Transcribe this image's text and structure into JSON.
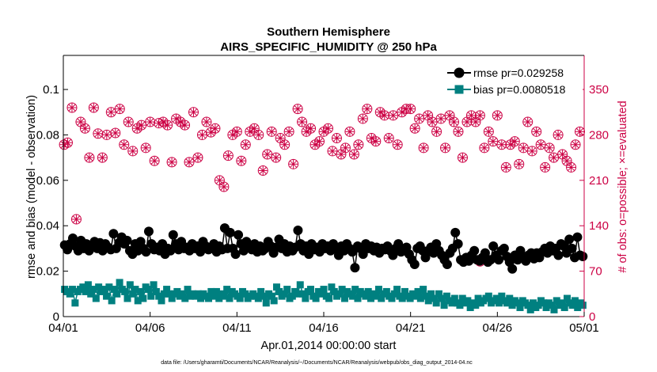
{
  "chart_data": {
    "type": "line",
    "title": [
      "Southern Hemisphere",
      "AIRS_SPECIFIC_HUMIDITY @ 250 hPa"
    ],
    "xlabel": "Apr.01,2014 00:00:00 start",
    "ylabel_left": "rmse and bias (model - observation)",
    "ylabel_right": "# of obs: o=possible; ×=evaluated",
    "footnote": "data file: /Users/gharamti/Documents/NCAR/Reanalysis/~/Documents/NCAR/Reanalysis/webpub/obs_diag_output_2014-04.nc",
    "x_ticks": [
      "04/01",
      "04/06",
      "04/11",
      "04/16",
      "04/21",
      "04/26",
      "05/01"
    ],
    "x_range_days": [
      0,
      30
    ],
    "ylim_left": [
      0,
      0.115
    ],
    "left_ticks": [
      "0",
      "0.02",
      "0.04",
      "0.06",
      "0.08",
      "0.1"
    ],
    "ylim_right": [
      0,
      402.5
    ],
    "right_ticks": [
      "0",
      "70",
      "140",
      "210",
      "280",
      "350"
    ],
    "legend": {
      "position": "top-right",
      "entries": [
        "rmse pr=0.029258",
        "bias pr=0.0080518"
      ]
    },
    "colors": {
      "rmse": "#000000",
      "bias": "#008080",
      "obs": "#cc0044"
    },
    "series": [
      {
        "name": "rmse pr=0.029258",
        "axis": "left",
        "values": [
          0.0315,
          0.0295,
          0.032,
          0.0345,
          0.031,
          0.029,
          0.0335,
          0.03,
          0.032,
          0.029,
          0.0315,
          0.033,
          0.03,
          0.0325,
          0.029,
          0.032,
          0.0305,
          0.0295,
          0.0365,
          0.03,
          0.0325,
          0.035,
          0.032,
          0.0335,
          0.029,
          0.0275,
          0.032,
          0.029,
          0.033,
          0.03,
          0.0285,
          0.0375,
          0.032,
          0.0295,
          0.0305,
          0.029,
          0.032,
          0.0275,
          0.03,
          0.029,
          0.036,
          0.032,
          0.0295,
          0.033,
          0.03,
          0.0305,
          0.029,
          0.032,
          0.03,
          0.031,
          0.0285,
          0.033,
          0.031,
          0.0295,
          0.03,
          0.032,
          0.0285,
          0.031,
          0.0295,
          0.039,
          0.03,
          0.037,
          0.03,
          0.0275,
          0.036,
          0.032,
          0.029,
          0.033,
          0.031,
          0.0295,
          0.032,
          0.0285,
          0.031,
          0.029,
          0.03,
          0.033,
          0.031,
          0.028,
          0.0305,
          0.034,
          0.03,
          0.032,
          0.0285,
          0.031,
          0.029,
          0.0305,
          0.038,
          0.032,
          0.029,
          0.031,
          0.0275,
          0.032,
          0.0295,
          0.0305,
          0.0285,
          0.032,
          0.03,
          0.031,
          0.029,
          0.032,
          0.03,
          0.027,
          0.031,
          0.029,
          0.032,
          0.03,
          0.0285,
          0.0215,
          0.031,
          0.03,
          0.0275,
          0.032,
          0.03,
          0.031,
          0.029,
          0.0305,
          0.028,
          0.03,
          0.0295,
          0.031,
          0.029,
          0.027,
          0.03,
          0.032,
          0.0285,
          0.029,
          0.0305,
          0.0275,
          0.025,
          0.023,
          0.03,
          0.031,
          0.029,
          0.026,
          0.029,
          0.0305,
          0.028,
          0.032,
          0.029,
          0.027,
          0.025,
          0.023,
          0.028,
          0.03,
          0.037,
          0.032,
          0.025,
          0.024,
          0.026,
          0.0245,
          0.027,
          0.029,
          0.025,
          0.0245,
          0.026,
          0.028,
          0.024,
          0.025,
          0.031,
          0.027,
          0.025,
          0.029,
          0.03,
          0.0265,
          0.024,
          0.021,
          0.027,
          0.025,
          0.029,
          0.026,
          0.0245,
          0.027,
          0.028,
          0.0255,
          0.028,
          0.026,
          0.0285,
          0.03,
          0.028,
          0.031,
          0.029,
          0.03,
          0.027,
          0.032,
          0.031,
          0.028,
          0.034,
          0.03,
          0.026,
          0.035,
          0.027,
          0.0265
        ]
      },
      {
        "name": "bias pr=0.0080518",
        "axis": "left",
        "values": [
          0.012,
          0.011,
          0.01,
          0.012,
          0.006,
          0.011,
          0.012,
          0.013,
          0.011,
          0.014,
          0.01,
          0.012,
          0.008,
          0.013,
          0.011,
          0.012,
          0.009,
          0.013,
          0.007,
          0.012,
          0.01,
          0.015,
          0.012,
          0.011,
          0.008,
          0.014,
          0.01,
          0.012,
          0.007,
          0.011,
          0.008,
          0.013,
          0.012,
          0.009,
          0.014,
          0.011,
          0.009,
          0.007,
          0.01,
          0.012,
          0.01,
          0.008,
          0.01,
          0.011,
          0.009,
          0.01,
          0.008,
          0.012,
          0.009,
          0.01,
          0.009,
          0.01,
          0.008,
          0.01,
          0.009,
          0.008,
          0.011,
          0.009,
          0.011,
          0.008,
          0.01,
          0.009,
          0.012,
          0.008,
          0.011,
          0.01,
          0.009,
          0.008,
          0.011,
          0.01,
          0.008,
          0.009,
          0.01,
          0.009,
          0.008,
          0.011,
          0.009,
          0.006,
          0.01,
          0.009,
          0.007,
          0.013,
          0.011,
          0.009,
          0.01,
          0.012,
          0.008,
          0.009,
          0.011,
          0.01,
          0.014,
          0.01,
          0.008,
          0.011,
          0.012,
          0.009,
          0.008,
          0.011,
          0.01,
          0.012,
          0.009,
          0.008,
          0.013,
          0.011,
          0.009,
          0.01,
          0.012,
          0.008,
          0.011,
          0.01,
          0.009,
          0.012,
          0.008,
          0.011,
          0.01,
          0.009,
          0.011,
          0.008,
          0.01,
          0.009,
          0.012,
          0.008,
          0.01,
          0.011,
          0.009,
          0.008,
          0.01,
          0.012,
          0.009,
          0.008,
          0.011,
          0.009,
          0.008,
          0.01,
          0.009,
          0.011,
          0.008,
          0.012,
          0.009,
          0.007,
          0.01,
          0.008,
          0.006,
          0.01,
          0.008,
          0.005,
          0.009,
          0.007,
          0.006,
          0.008,
          0.006,
          0.005,
          0.008,
          0.006,
          0.007,
          0.004,
          0.006,
          0.005,
          0.008,
          0.006,
          0.007,
          0.008,
          0.009,
          0.006,
          0.007,
          0.008,
          0.006,
          0.009,
          0.007,
          0.006,
          0.008,
          0.005,
          0.007,
          0.006,
          0.004,
          0.007,
          0.006,
          0.005,
          0.003,
          0.006,
          0.004,
          0.005,
          0.007,
          0.006,
          0.004,
          0.006,
          0.005,
          0.003,
          0.007,
          0.005,
          0.006,
          0.004,
          0.008,
          0.006,
          0.005,
          0.007,
          0.004,
          0.006,
          0.005
        ]
      },
      {
        "name": "",
        "axis": "right",
        "marker": "circle",
        "x_days": [
          0.05,
          0.25,
          0.5,
          0.75,
          1.0,
          1.25,
          1.5,
          1.75,
          2.0,
          2.25,
          2.5,
          2.75,
          3.0,
          3.25,
          3.5,
          3.75,
          4.0,
          4.25,
          4.5,
          4.75,
          5.0,
          5.25,
          5.5,
          5.75,
          6.0,
          6.25,
          6.5,
          6.75,
          7.0,
          7.25,
          7.5,
          7.75,
          8.0,
          8.25,
          8.5,
          8.75,
          9.0,
          9.25,
          9.5,
          9.75,
          10.0,
          10.25,
          10.5,
          10.75,
          11.0,
          11.25,
          11.5,
          11.75,
          12.0,
          12.25,
          12.5,
          12.75,
          13.0,
          13.25,
          13.5,
          13.75,
          14.0,
          14.25,
          14.5,
          14.75,
          15.0,
          15.25,
          15.5,
          15.75,
          16.0,
          16.25,
          16.5,
          16.75,
          17.0,
          17.25,
          17.5,
          17.75,
          18.0,
          18.25,
          18.5,
          18.75,
          19.0,
          19.25,
          19.5,
          19.75,
          20.0,
          20.25,
          20.5,
          20.75,
          21.0,
          21.25,
          21.5,
          21.75,
          22.0,
          22.25,
          22.5,
          22.75,
          23.0,
          23.25,
          23.5,
          23.75,
          24.0,
          24.25,
          24.5,
          24.75,
          25.0,
          25.25,
          25.5,
          25.75,
          26.0,
          26.25,
          26.5,
          26.75,
          27.0,
          27.25,
          27.5,
          27.75,
          28.0,
          28.25,
          28.5,
          28.75,
          29.0,
          29.25,
          29.5,
          29.75
        ],
        "values": [
          265,
          268,
          322,
          150,
          300,
          290,
          245,
          322,
          282,
          245,
          280,
          315,
          283,
          320,
          265,
          300,
          255,
          290,
          295,
          260,
          300,
          240,
          298,
          300,
          295,
          238,
          305,
          300,
          295,
          238,
          315,
          245,
          280,
          300,
          284,
          290,
          210,
          200,
          248,
          280,
          285,
          240,
          265,
          285,
          290,
          280,
          225,
          250,
          285,
          245,
          275,
          265,
          285,
          235,
          320,
          300,
          285,
          290,
          265,
          270,
          285,
          290,
          255,
          275,
          250,
          260,
          285,
          250,
          265,
          305,
          320,
          275,
          270,
          315,
          310,
          275,
          310,
          265,
          315,
          320,
          320,
          290,
          305,
          260,
          310,
          300,
          285,
          305,
          260,
          310,
          300,
          285,
          245,
          300,
          310,
          300,
          310,
          260,
          285,
          270,
          310,
          265,
          230,
          265,
          270,
          235,
          260,
          300,
          255,
          285,
          265,
          230,
          260,
          245,
          280,
          250,
          240,
          230,
          265,
          285
        ],
        "evaluated": [
          265,
          268,
          322,
          150,
          300,
          290,
          245,
          322,
          282,
          245,
          280,
          315,
          283,
          320,
          265,
          300,
          255,
          290,
          295,
          260,
          300,
          240,
          298,
          300,
          295,
          238,
          305,
          300,
          295,
          238,
          315,
          245,
          280,
          300,
          284,
          290,
          210,
          200,
          248,
          280,
          285,
          240,
          265,
          285,
          290,
          280,
          225,
          250,
          285,
          245,
          275,
          265,
          285,
          235,
          320,
          300,
          285,
          290,
          265,
          270,
          285,
          290,
          255,
          275,
          250,
          260,
          285,
          250,
          265,
          305,
          320,
          275,
          270,
          315,
          310,
          275,
          310,
          265,
          315,
          320,
          320,
          290,
          305,
          260,
          310,
          300,
          285,
          305,
          260,
          310,
          300,
          285,
          245,
          300,
          310,
          300,
          310,
          260,
          285,
          270,
          310,
          265,
          230,
          265,
          270,
          235,
          260,
          300,
          255,
          285,
          265,
          230,
          260,
          245,
          280,
          250,
          240,
          230,
          265,
          285
        ]
      }
    ],
    "extra_markers": [
      {
        "day": 24.0,
        "value": 85
      }
    ]
  }
}
